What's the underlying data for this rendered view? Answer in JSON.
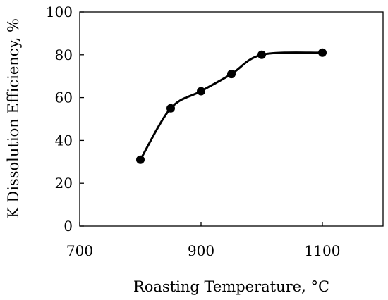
{
  "chart_data": {
    "type": "line",
    "title": "",
    "xlabel": "Roasting Temperature, °C",
    "ylabel": "K Dissolution Efficiency, %",
    "xlim": [
      700,
      1200
    ],
    "ylim": [
      0,
      100
    ],
    "xticks": [
      700,
      900,
      1100
    ],
    "yticks": [
      0,
      20,
      40,
      60,
      80,
      100
    ],
    "grid": false,
    "legend": "none",
    "smooth": true,
    "series": [
      {
        "x": [
          800,
          850,
          900,
          950,
          1000,
          1100
        ],
        "y": [
          31,
          55,
          63,
          71,
          80,
          81
        ],
        "color": "#000000",
        "marker": "circle"
      }
    ]
  }
}
